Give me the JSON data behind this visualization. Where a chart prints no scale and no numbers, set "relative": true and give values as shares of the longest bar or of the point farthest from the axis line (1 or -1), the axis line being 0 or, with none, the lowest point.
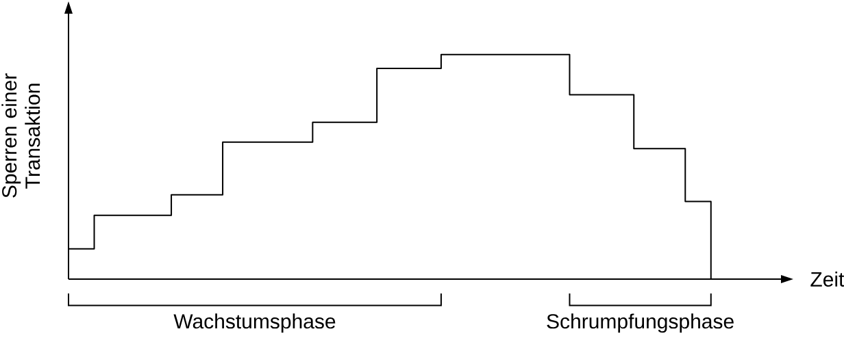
{
  "chart_data": {
    "type": "step",
    "xlabel": "Zeit",
    "ylabel": "Sperren einer Transaktion",
    "relative": true,
    "tick_labels": false,
    "color": "#000000",
    "line_style": "solid",
    "categories": [
      null,
      null,
      null,
      null,
      null,
      null,
      null,
      null,
      null,
      null,
      null,
      null,
      null,
      null,
      null,
      null,
      null,
      null,
      null,
      null,
      null,
      null,
      null,
      null,
      null,
      null,
      null,
      null,
      null,
      null,
      null,
      null,
      null,
      null,
      null,
      null,
      null,
      null,
      null,
      null,
      null,
      null,
      null,
      null,
      null,
      null,
      null,
      null,
      null,
      null,
      null
    ],
    "values": [
      0.135,
      0.135,
      0.284,
      0.284,
      0.284,
      0.284,
      0.284,
      0.284,
      0.375,
      0.375,
      0.375,
      0.375,
      0.61,
      0.61,
      0.61,
      0.61,
      0.61,
      0.61,
      0.61,
      0.698,
      0.698,
      0.698,
      0.698,
      0.698,
      0.938,
      0.938,
      0.938,
      0.938,
      0.938,
      1,
      1,
      1,
      1,
      1,
      1,
      1,
      1,
      1,
      1,
      0.821,
      0.821,
      0.821,
      0.821,
      0.821,
      0.581,
      0.581,
      0.581,
      0.581,
      0.346,
      0.346,
      0
    ],
    "annotations": [
      "Wachstumsphase",
      "Schrumpfungsphase"
    ]
  }
}
